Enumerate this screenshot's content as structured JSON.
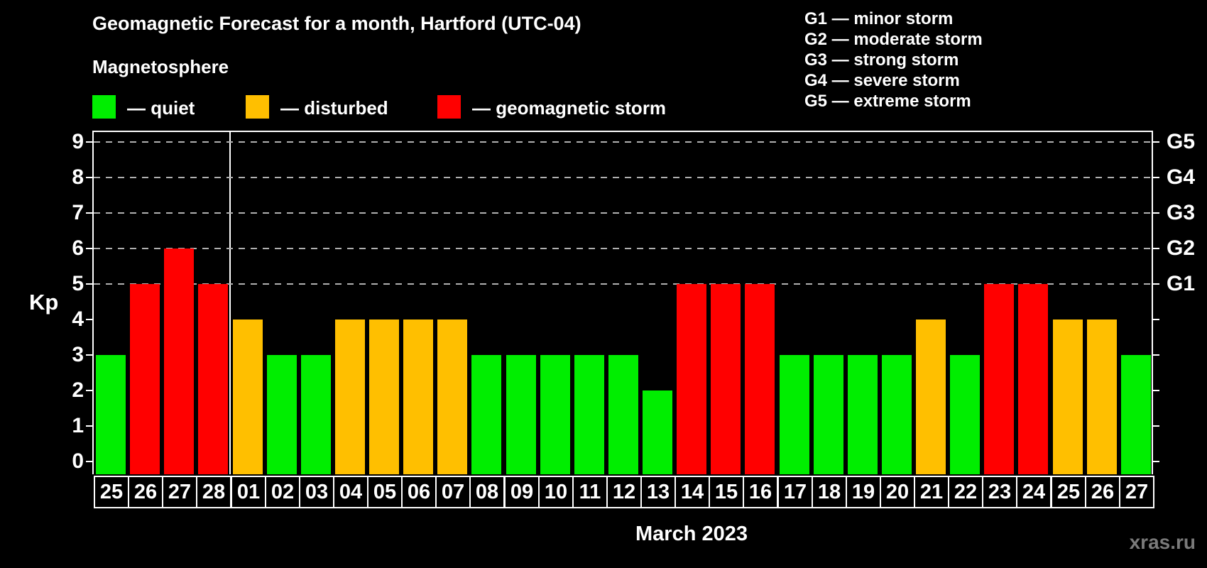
{
  "title": "Geomagnetic Forecast for a month, Hartford (UTC-04)",
  "subtitle": "Magnetosphere",
  "legend": {
    "quiet_label": "— quiet",
    "disturbed_label": "— disturbed",
    "storm_label": "— geomagnetic storm"
  },
  "g_legend": {
    "g1": "G1 — minor storm",
    "g2": "G2 — moderate storm",
    "g3": "G3 — strong storm",
    "g4": "G4 — severe storm",
    "g5": "G5 — extreme storm"
  },
  "watermark": "xras.ru",
  "colors": {
    "background": "#000000",
    "quiet": "#00ee00",
    "disturbed": "#ffbf00",
    "storm": "#ff0000",
    "grid": "#b0b0b0",
    "axis": "#ffffff",
    "watermark": "#7a7a7a"
  },
  "chart_data": {
    "type": "bar",
    "title": "Geomagnetic Forecast for a month, Hartford (UTC-04)",
    "xlabel": "March 2023",
    "ylabel": "Kp",
    "ylim": [
      0,
      9
    ],
    "yticks_left": [
      0,
      1,
      2,
      3,
      4,
      5,
      6,
      7,
      8,
      9
    ],
    "yticks_right": [
      {
        "kp": 5,
        "label": "G1"
      },
      {
        "kp": 6,
        "label": "G2"
      },
      {
        "kp": 7,
        "label": "G3"
      },
      {
        "kp": 8,
        "label": "G4"
      },
      {
        "kp": 9,
        "label": "G5"
      }
    ],
    "gridlines_at_kp": [
      5,
      6,
      7,
      8,
      9
    ],
    "grid": "dashed horizontal at storm levels only",
    "legend_position": "top",
    "forecast_divider_after_index": 3,
    "categories": [
      "25",
      "26",
      "27",
      "28",
      "01",
      "02",
      "03",
      "04",
      "05",
      "06",
      "07",
      "08",
      "09",
      "10",
      "11",
      "12",
      "13",
      "14",
      "15",
      "16",
      "17",
      "18",
      "19",
      "20",
      "21",
      "22",
      "23",
      "24",
      "25",
      "26",
      "27"
    ],
    "values": [
      3,
      5,
      6,
      5,
      4,
      3,
      3,
      4,
      4,
      4,
      4,
      3,
      3,
      3,
      3,
      3,
      2,
      5,
      5,
      5,
      3,
      3,
      3,
      3,
      4,
      3,
      5,
      5,
      4,
      4,
      3
    ],
    "statuses": [
      "quiet",
      "storm",
      "storm",
      "storm",
      "disturbed",
      "quiet",
      "quiet",
      "disturbed",
      "disturbed",
      "disturbed",
      "disturbed",
      "quiet",
      "quiet",
      "quiet",
      "quiet",
      "quiet",
      "quiet",
      "storm",
      "storm",
      "storm",
      "quiet",
      "quiet",
      "quiet",
      "quiet",
      "disturbed",
      "quiet",
      "storm",
      "storm",
      "disturbed",
      "disturbed",
      "quiet"
    ]
  }
}
